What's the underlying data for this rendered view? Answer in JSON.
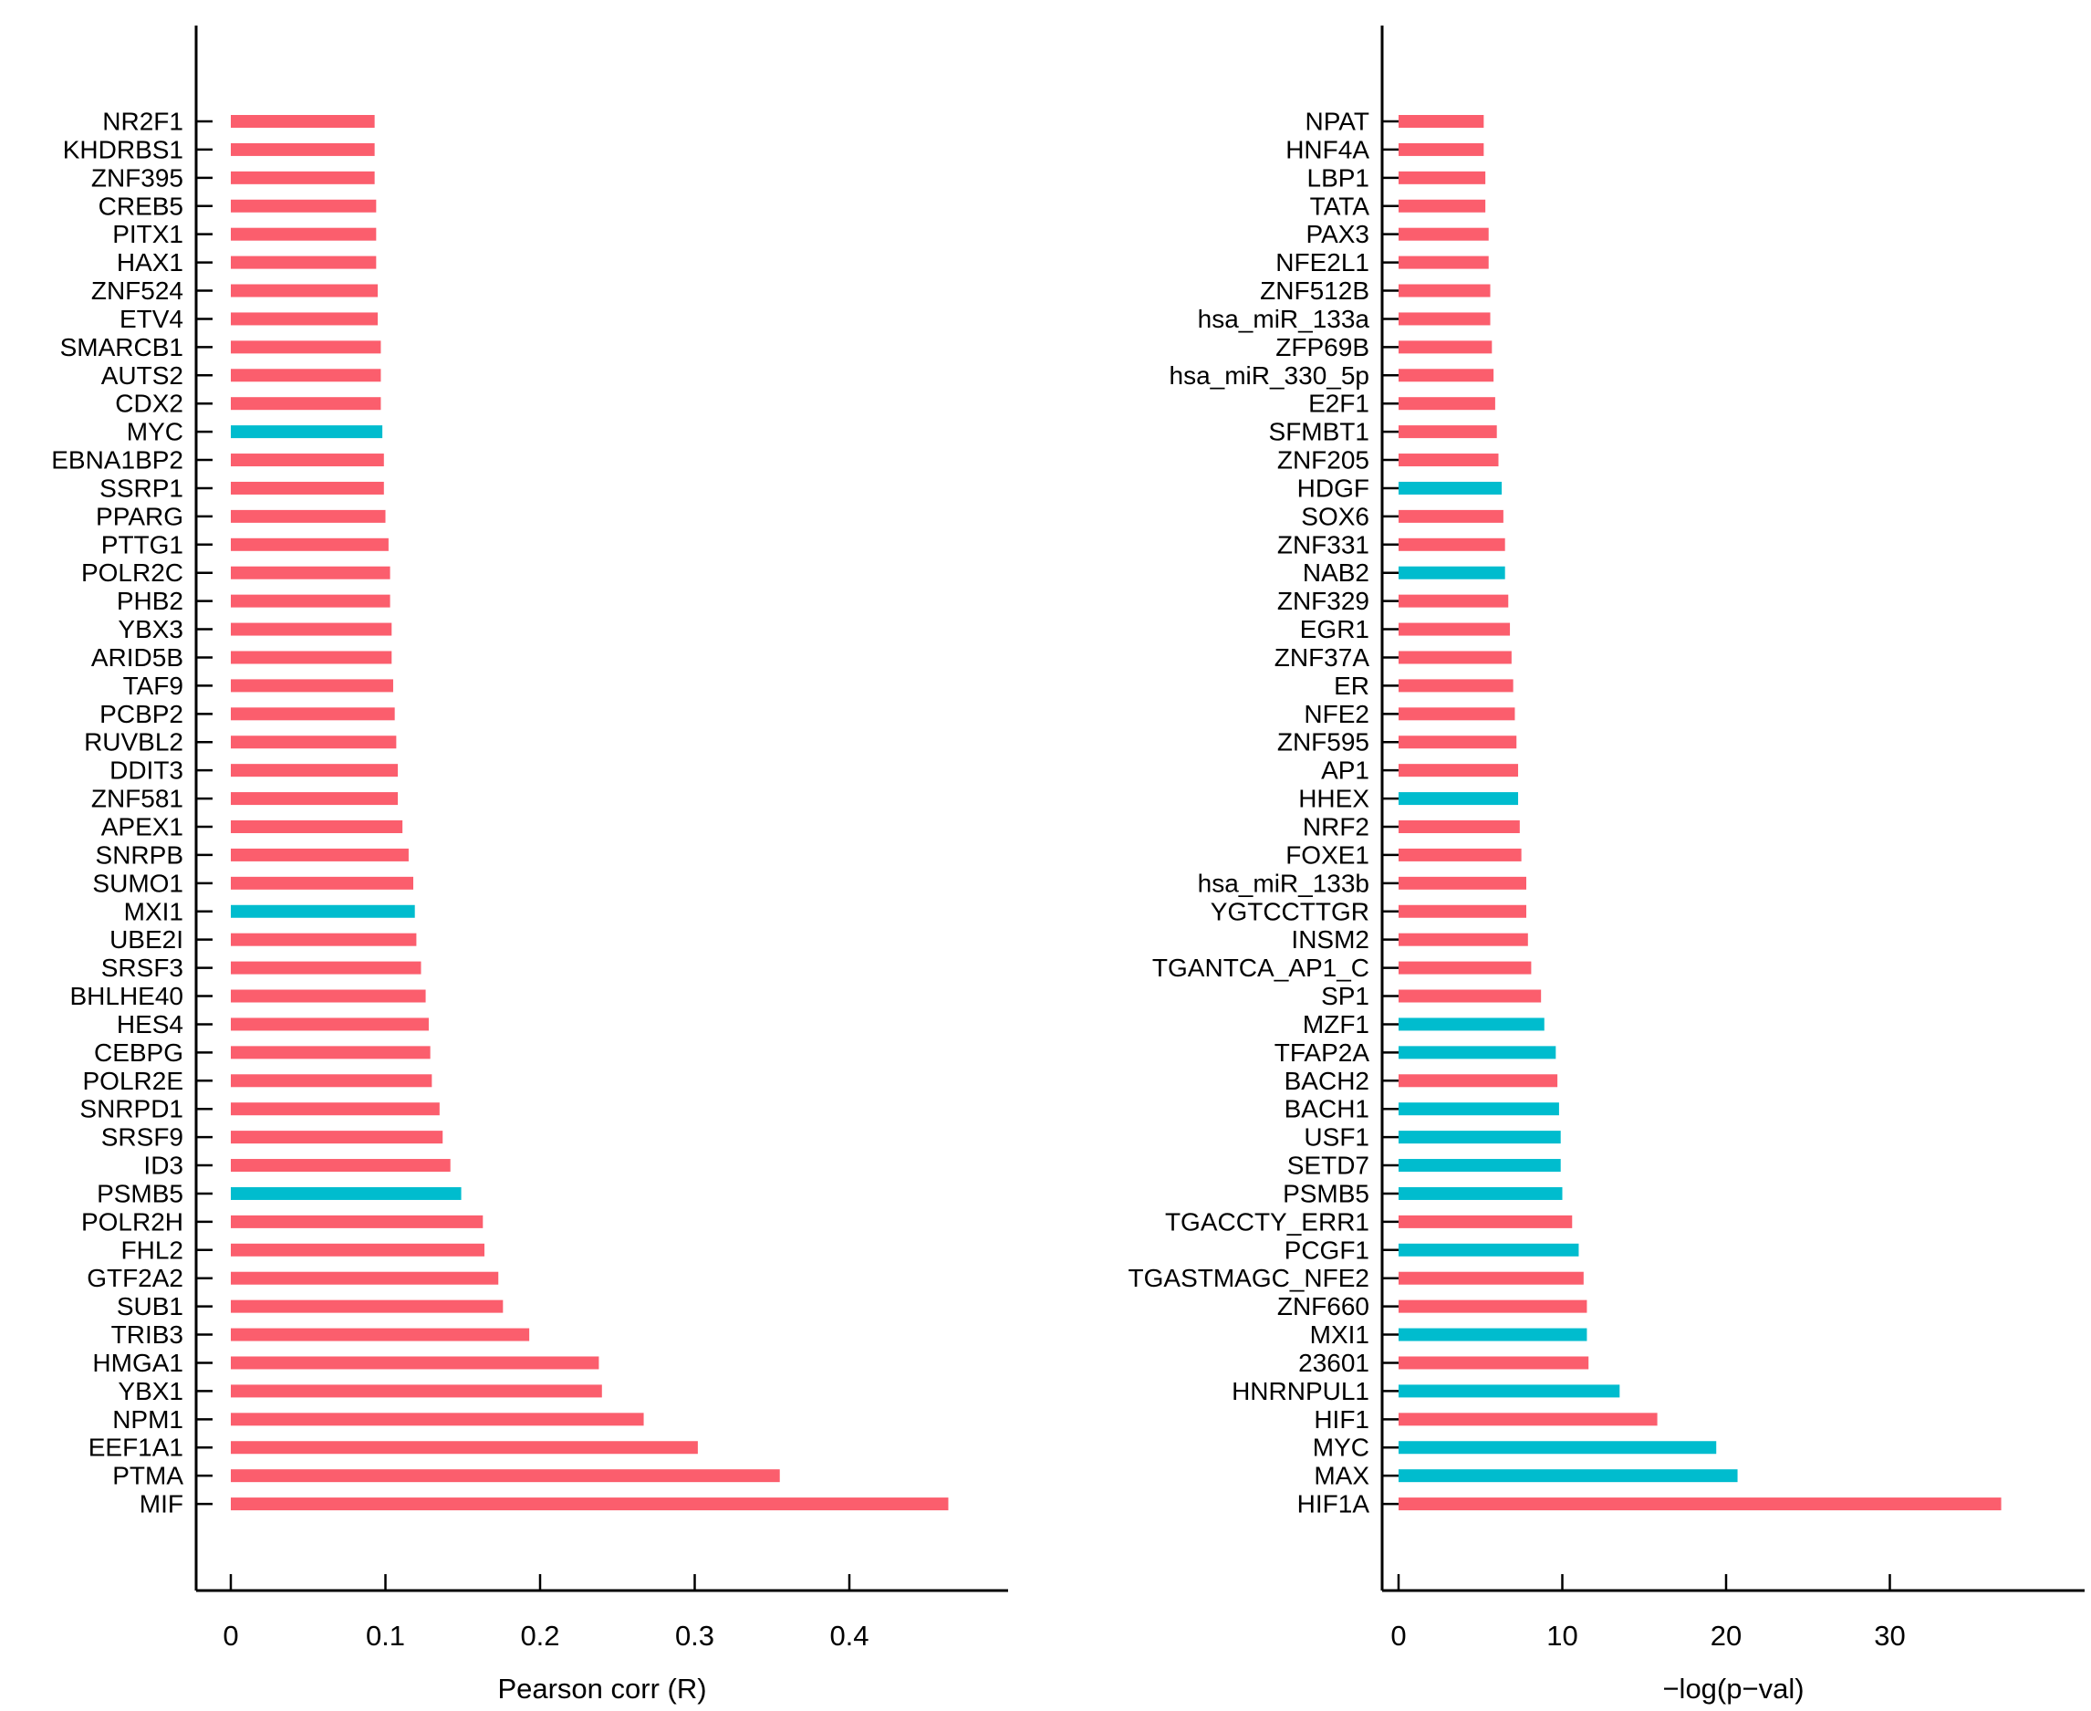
{
  "colors": {
    "red": "#FB5E6D",
    "cyan": "#00BCCE",
    "text": "#000000",
    "axis": "#000000",
    "background": "#FFFFFF"
  },
  "chart_data": [
    {
      "type": "bar",
      "orientation": "horizontal",
      "title": "",
      "xlabel": "Pearson corr (R)",
      "ylabel": "",
      "xlim": [
        0,
        0.5
      ],
      "grid": false,
      "legend": null,
      "xticks": [
        {
          "value": 0,
          "label": "0"
        },
        {
          "value": 0.1,
          "label": "0.1"
        },
        {
          "value": 0.2,
          "label": "0.2"
        },
        {
          "value": 0.3,
          "label": "0.3"
        },
        {
          "value": 0.4,
          "label": "0.4"
        }
      ],
      "categories": [
        "NR2F1",
        "KHDRBS1",
        "ZNF395",
        "CREB5",
        "PITX1",
        "HAX1",
        "ZNF524",
        "ETV4",
        "SMARCB1",
        "AUTS2",
        "CDX2",
        "MYC",
        "EBNA1BP2",
        "SSRP1",
        "PPARG",
        "PTTG1",
        "POLR2C",
        "PHB2",
        "YBX3",
        "ARID5B",
        "TAF9",
        "PCBP2",
        "RUVBL2",
        "DDIT3",
        "ZNF581",
        "APEX1",
        "SNRPB",
        "SUMO1",
        "MXI1",
        "UBE2I",
        "SRSF3",
        "BHLHE40",
        "HES4",
        "CEBPG",
        "POLR2E",
        "SNRPD1",
        "SRSF9",
        "ID3",
        "PSMB5",
        "POLR2H",
        "FHL2",
        "GTF2A2",
        "SUB1",
        "TRIB3",
        "HMGA1",
        "YBX1",
        "NPM1",
        "EEF1A1",
        "PTMA",
        "MIF"
      ],
      "values": [
        0.093,
        0.093,
        0.093,
        0.094,
        0.094,
        0.094,
        0.095,
        0.095,
        0.097,
        0.097,
        0.097,
        0.098,
        0.099,
        0.099,
        0.1,
        0.102,
        0.103,
        0.103,
        0.104,
        0.104,
        0.105,
        0.106,
        0.107,
        0.108,
        0.108,
        0.111,
        0.115,
        0.118,
        0.119,
        0.12,
        0.123,
        0.126,
        0.128,
        0.129,
        0.13,
        0.135,
        0.137,
        0.142,
        0.149,
        0.163,
        0.164,
        0.173,
        0.176,
        0.193,
        0.238,
        0.24,
        0.267,
        0.302,
        0.355,
        0.464
      ],
      "bar_colors": [
        "red",
        "red",
        "red",
        "red",
        "red",
        "red",
        "red",
        "red",
        "red",
        "red",
        "red",
        "cyan",
        "red",
        "red",
        "red",
        "red",
        "red",
        "red",
        "red",
        "red",
        "red",
        "red",
        "red",
        "red",
        "red",
        "red",
        "red",
        "red",
        "cyan",
        "red",
        "red",
        "red",
        "red",
        "red",
        "red",
        "red",
        "red",
        "red",
        "cyan",
        "red",
        "red",
        "red",
        "red",
        "red",
        "red",
        "red",
        "red",
        "red",
        "red",
        "red"
      ]
    },
    {
      "type": "bar",
      "orientation": "horizontal",
      "title": "",
      "xlabel": "−log(p−val)",
      "ylabel": "",
      "xlim": [
        0,
        42
      ],
      "grid": false,
      "legend": null,
      "xticks": [
        {
          "value": 0,
          "label": "0"
        },
        {
          "value": 10,
          "label": "10"
        },
        {
          "value": 20,
          "label": "20"
        },
        {
          "value": 30,
          "label": "30"
        }
      ],
      "categories": [
        "NPAT",
        "HNF4A",
        "LBP1",
        "TATA",
        "PAX3",
        "NFE2L1",
        "ZNF512B",
        "hsa_miR_133a",
        "ZFP69B",
        "hsa_miR_330_5p",
        "E2F1",
        "SFMBT1",
        "ZNF205",
        "HDGF",
        "SOX6",
        "ZNF331",
        "NAB2",
        "ZNF329",
        "EGR1",
        "ZNF37A",
        "ER",
        "NFE2",
        "ZNF595",
        "AP1",
        "HHEX",
        "NRF2",
        "FOXE1",
        "hsa_miR_133b",
        "YGTCCTTGR",
        "INSM2",
        "TGANTCA_AP1_C",
        "SP1",
        "MZF1",
        "TFAP2A",
        "BACH2",
        "BACH1",
        "USF1",
        "SETD7",
        "PSMB5",
        "TGACCTY_ERR1",
        "PCGF1",
        "TGASTMAGC_NFE2",
        "ZNF660",
        "MXI1",
        "23601",
        "HNRNPUL1",
        "HIF1",
        "MYC",
        "MAX",
        "HIF1A"
      ],
      "values": [
        5.2,
        5.2,
        5.3,
        5.3,
        5.5,
        5.5,
        5.6,
        5.6,
        5.7,
        5.8,
        5.9,
        6.0,
        6.1,
        6.3,
        6.4,
        6.5,
        6.5,
        6.7,
        6.8,
        6.9,
        7.0,
        7.1,
        7.2,
        7.3,
        7.3,
        7.4,
        7.5,
        7.8,
        7.8,
        7.9,
        8.1,
        8.7,
        8.9,
        9.6,
        9.7,
        9.8,
        9.9,
        9.9,
        10.0,
        10.6,
        11.0,
        11.3,
        11.5,
        11.5,
        11.6,
        13.5,
        15.8,
        19.4,
        20.7,
        36.8
      ],
      "bar_colors": [
        "red",
        "red",
        "red",
        "red",
        "red",
        "red",
        "red",
        "red",
        "red",
        "red",
        "red",
        "red",
        "red",
        "cyan",
        "red",
        "red",
        "cyan",
        "red",
        "red",
        "red",
        "red",
        "red",
        "red",
        "red",
        "cyan",
        "red",
        "red",
        "red",
        "red",
        "red",
        "red",
        "red",
        "cyan",
        "cyan",
        "red",
        "cyan",
        "cyan",
        "cyan",
        "cyan",
        "red",
        "cyan",
        "red",
        "red",
        "cyan",
        "red",
        "cyan",
        "red",
        "cyan",
        "cyan",
        "red"
      ]
    }
  ]
}
